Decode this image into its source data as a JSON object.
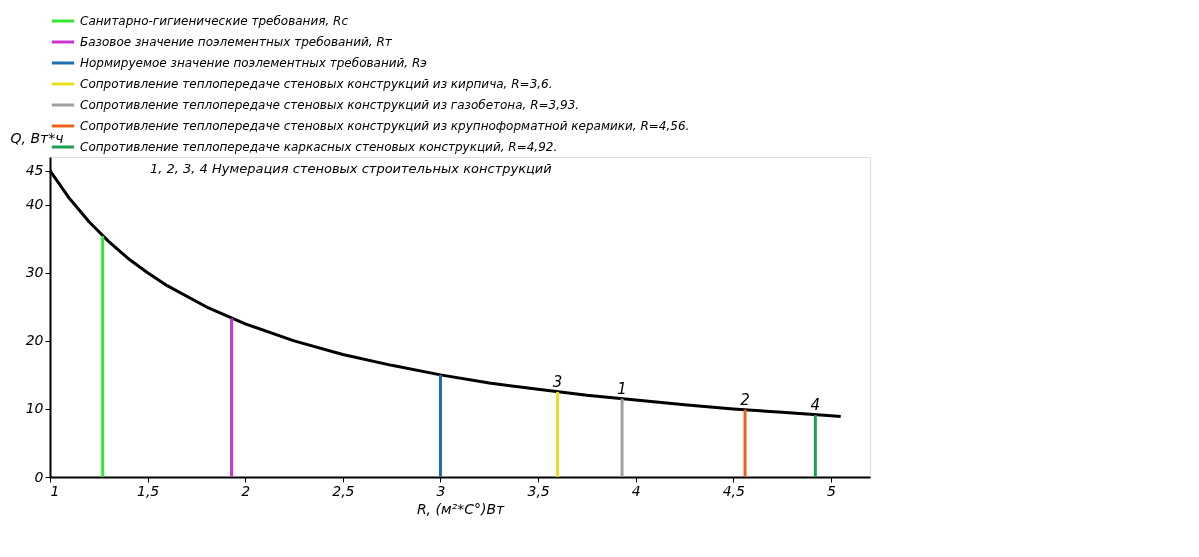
{
  "chart_data": {
    "type": "line",
    "xlabel": "R, (м²*С°)Вт",
    "ylabel": "Q, Вт*ч",
    "xlim": [
      1,
      5.2
    ],
    "ylim": [
      0,
      47
    ],
    "xticks": [
      1,
      {
        "value": 1.5,
        "label": "1,5"
      },
      2,
      {
        "value": 2.5,
        "label": "2,5"
      },
      3,
      {
        "value": 3.5,
        "label": "3,5"
      },
      4,
      {
        "value": 4.5,
        "label": "4,5"
      },
      5
    ],
    "yticks": [
      0,
      10,
      20,
      30,
      40,
      45
    ],
    "grid": false,
    "legend": "top",
    "marker": "none",
    "line_style": "solid",
    "series": [
      {
        "color": "#000000",
        "x": [
          1,
          1.1,
          1.2,
          1.3,
          1.4,
          1.5,
          1.6,
          1.8,
          2,
          2.25,
          2.5,
          2.75,
          3,
          3.25,
          3.5,
          3.75,
          4,
          4.25,
          4.5,
          4.75,
          5,
          5.05
        ],
        "values": [
          45,
          40.9,
          37.5,
          34.6,
          32.1,
          30,
          28.1,
          25,
          22.5,
          20,
          18,
          16.4,
          15,
          13.8,
          12.9,
          12,
          11.3,
          10.6,
          10,
          9.5,
          9,
          8.9
        ]
      },
      {
        "name": "Санитарно-гигиенические требования, Rc",
        "color": "#33e633",
        "x": [
          1.27,
          1.27
        ],
        "values": [
          0,
          35.4
        ]
      },
      {
        "name": "Базовое значение поэлементных требований, Rт",
        "color": "#cc33cc",
        "x": [
          1.93,
          1.93
        ],
        "values": [
          0,
          23.3
        ]
      },
      {
        "name": "Нормируемое значение поэлементных требований, Rэ",
        "color": "#1f6fb0",
        "x": [
          3.0,
          3.0
        ],
        "values": [
          0,
          15
        ]
      },
      {
        "name": "Сопротивление теплопередаче стеновых конструкций из кирпича, R=3,6.",
        "color": "#e8e020",
        "x": [
          3.6,
          3.6
        ],
        "values": [
          0,
          12.5
        ]
      },
      {
        "name": "Сопротивление теплопередаче стеновых конструкций из газобетона, R=3,93.",
        "color": "#a0a0a0",
        "x": [
          3.93,
          3.93
        ],
        "values": [
          0,
          11.5
        ]
      },
      {
        "name": "Сопротивление теплопередаче стеновых конструкций из крупноформатной керамики, R=4,56.",
        "color": "#e8641e",
        "x": [
          4.56,
          4.56
        ],
        "values": [
          0,
          9.9
        ]
      },
      {
        "name": "Сопротивление теплопередаче каркасных стеновых конструкций, R=4,92.",
        "color": "#1e9e4e",
        "x": [
          4.92,
          4.92
        ],
        "values": [
          0,
          9.1
        ]
      }
    ],
    "annotations": [
      "1, 2, 3, 4 Нумерация стеновых строительных конструкций",
      {
        "text": "3",
        "x": 3.6,
        "y": 12.5
      },
      {
        "text": "1",
        "x": 3.93,
        "y": 11.5
      },
      {
        "text": "2",
        "x": 4.56,
        "y": 9.9
      },
      {
        "text": "4",
        "x": 4.92,
        "y": 9.1
      }
    ]
  }
}
